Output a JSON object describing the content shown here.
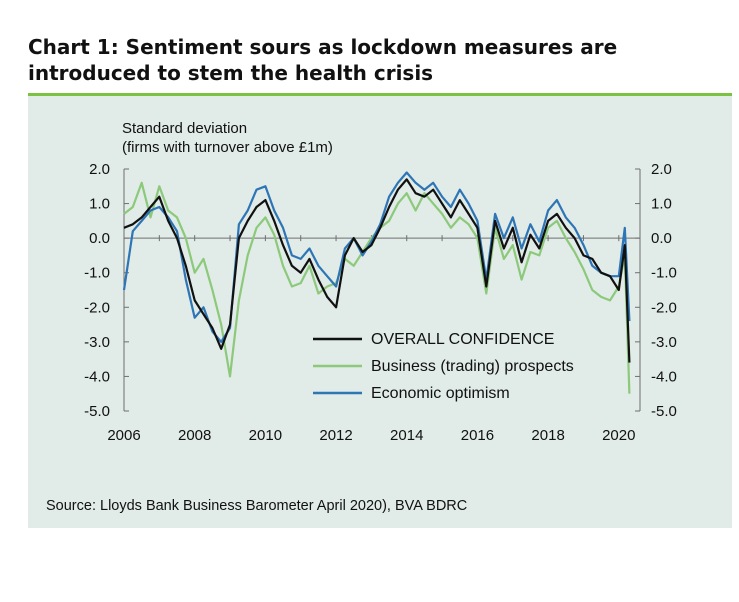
{
  "title": "Chart 1: Sentiment sours as lockdown measures are introduced to stem the health crisis",
  "source": "Source: Lloyds Bank Business Barometer April 2020), BVA BDRC",
  "colors": {
    "rule": "#7cc242",
    "panel": "#e1ebe7"
  },
  "chart_data": {
    "type": "line",
    "ylabel": "Standard deviation",
    "ylabel2": "(firms with turnover above £1m)",
    "ylim": [
      -5.0,
      2.0
    ],
    "xlim": [
      2006,
      2020.6
    ],
    "yticks": [
      "2.0",
      "1.0",
      "0.0",
      "-1.0",
      "-2.0",
      "-3.0",
      "-4.0",
      "-5.0"
    ],
    "yticks_right": [
      "2.0",
      "1.0",
      "0.0",
      "-1.0",
      "-2.0",
      "-3.0",
      "-4.0",
      "-5.0"
    ],
    "xticks": [
      "2006",
      "2008",
      "2010",
      "2012",
      "2014",
      "2016",
      "2018",
      "2020"
    ],
    "legend_position": "lower-right",
    "grid": false,
    "series": [
      {
        "name": "OVERALL CONFIDENCE",
        "color": "#111111",
        "x": [
          2006.0,
          2006.25,
          2006.5,
          2006.75,
          2007.0,
          2007.25,
          2007.5,
          2007.75,
          2008.0,
          2008.25,
          2008.5,
          2008.75,
          2009.0,
          2009.25,
          2009.5,
          2009.75,
          2010.0,
          2010.25,
          2010.5,
          2010.75,
          2011.0,
          2011.25,
          2011.5,
          2011.75,
          2012.0,
          2012.25,
          2012.5,
          2012.75,
          2013.0,
          2013.25,
          2013.5,
          2013.75,
          2014.0,
          2014.25,
          2014.5,
          2014.75,
          2015.0,
          2015.25,
          2015.5,
          2015.75,
          2016.0,
          2016.25,
          2016.5,
          2016.75,
          2017.0,
          2017.25,
          2017.5,
          2017.75,
          2018.0,
          2018.25,
          2018.5,
          2018.75,
          2019.0,
          2019.25,
          2019.5,
          2019.75,
          2020.0,
          2020.17,
          2020.3
        ],
        "values": [
          0.3,
          0.4,
          0.6,
          0.9,
          1.2,
          0.5,
          0.0,
          -0.8,
          -1.8,
          -2.2,
          -2.6,
          -3.2,
          -2.5,
          0.0,
          0.5,
          0.9,
          1.1,
          0.5,
          -0.2,
          -0.8,
          -1.0,
          -0.6,
          -1.2,
          -1.7,
          -2.0,
          -0.5,
          0.0,
          -0.4,
          -0.2,
          0.3,
          0.9,
          1.4,
          1.7,
          1.3,
          1.2,
          1.4,
          1.0,
          0.6,
          1.1,
          0.7,
          0.3,
          -1.4,
          0.5,
          -0.3,
          0.3,
          -0.7,
          0.1,
          -0.3,
          0.5,
          0.7,
          0.3,
          0.0,
          -0.5,
          -0.6,
          -1.0,
          -1.1,
          -1.5,
          -0.2,
          -3.6
        ]
      },
      {
        "name": "Business (trading) prospects",
        "color": "#8cc97a",
        "x": [
          2006.0,
          2006.25,
          2006.5,
          2006.75,
          2007.0,
          2007.25,
          2007.5,
          2007.75,
          2008.0,
          2008.25,
          2008.5,
          2008.75,
          2009.0,
          2009.25,
          2009.5,
          2009.75,
          2010.0,
          2010.25,
          2010.5,
          2010.75,
          2011.0,
          2011.25,
          2011.5,
          2011.75,
          2012.0,
          2012.25,
          2012.5,
          2012.75,
          2013.0,
          2013.25,
          2013.5,
          2013.75,
          2014.0,
          2014.25,
          2014.5,
          2014.75,
          2015.0,
          2015.25,
          2015.5,
          2015.75,
          2016.0,
          2016.25,
          2016.5,
          2016.75,
          2017.0,
          2017.25,
          2017.5,
          2017.75,
          2018.0,
          2018.25,
          2018.5,
          2018.75,
          2019.0,
          2019.25,
          2019.5,
          2019.75,
          2020.0,
          2020.17,
          2020.3
        ],
        "values": [
          0.7,
          0.9,
          1.6,
          0.6,
          1.5,
          0.8,
          0.6,
          0.0,
          -1.0,
          -0.6,
          -1.5,
          -2.5,
          -4.0,
          -1.8,
          -0.5,
          0.3,
          0.6,
          0.1,
          -0.8,
          -1.4,
          -1.3,
          -0.8,
          -1.6,
          -1.4,
          -1.3,
          -0.6,
          -0.8,
          -0.4,
          0.0,
          0.3,
          0.5,
          1.0,
          1.3,
          0.8,
          1.3,
          1.0,
          0.7,
          0.3,
          0.6,
          0.4,
          0.0,
          -1.6,
          0.3,
          -0.6,
          -0.2,
          -1.2,
          -0.4,
          -0.5,
          0.3,
          0.5,
          0.0,
          -0.4,
          -0.9,
          -1.5,
          -1.7,
          -1.8,
          -1.4,
          -0.5,
          -4.5
        ]
      },
      {
        "name": "Economic optimism",
        "color": "#2e75b6",
        "x": [
          2006.0,
          2006.25,
          2006.5,
          2006.75,
          2007.0,
          2007.25,
          2007.5,
          2007.75,
          2008.0,
          2008.25,
          2008.5,
          2008.75,
          2009.0,
          2009.25,
          2009.5,
          2009.75,
          2010.0,
          2010.25,
          2010.5,
          2010.75,
          2011.0,
          2011.25,
          2011.5,
          2011.75,
          2012.0,
          2012.25,
          2012.5,
          2012.75,
          2013.0,
          2013.25,
          2013.5,
          2013.75,
          2014.0,
          2014.25,
          2014.5,
          2014.75,
          2015.0,
          2015.25,
          2015.5,
          2015.75,
          2016.0,
          2016.25,
          2016.5,
          2016.75,
          2017.0,
          2017.25,
          2017.5,
          2017.75,
          2018.0,
          2018.25,
          2018.5,
          2018.75,
          2019.0,
          2019.25,
          2019.5,
          2019.75,
          2020.0,
          2020.17,
          2020.3
        ],
        "values": [
          -1.5,
          0.2,
          0.5,
          0.8,
          0.9,
          0.6,
          0.2,
          -1.2,
          -2.3,
          -2.0,
          -2.7,
          -3.0,
          -2.6,
          0.4,
          0.8,
          1.4,
          1.5,
          0.8,
          0.3,
          -0.5,
          -0.6,
          -0.3,
          -0.8,
          -1.1,
          -1.4,
          -0.3,
          0.0,
          -0.5,
          -0.1,
          0.4,
          1.2,
          1.6,
          1.9,
          1.6,
          1.4,
          1.6,
          1.2,
          0.9,
          1.4,
          1.0,
          0.5,
          -1.2,
          0.7,
          0.0,
          0.6,
          -0.3,
          0.4,
          -0.1,
          0.8,
          1.1,
          0.6,
          0.3,
          -0.2,
          -0.8,
          -1.0,
          -1.1,
          -1.1,
          0.3,
          -2.4
        ]
      }
    ]
  }
}
